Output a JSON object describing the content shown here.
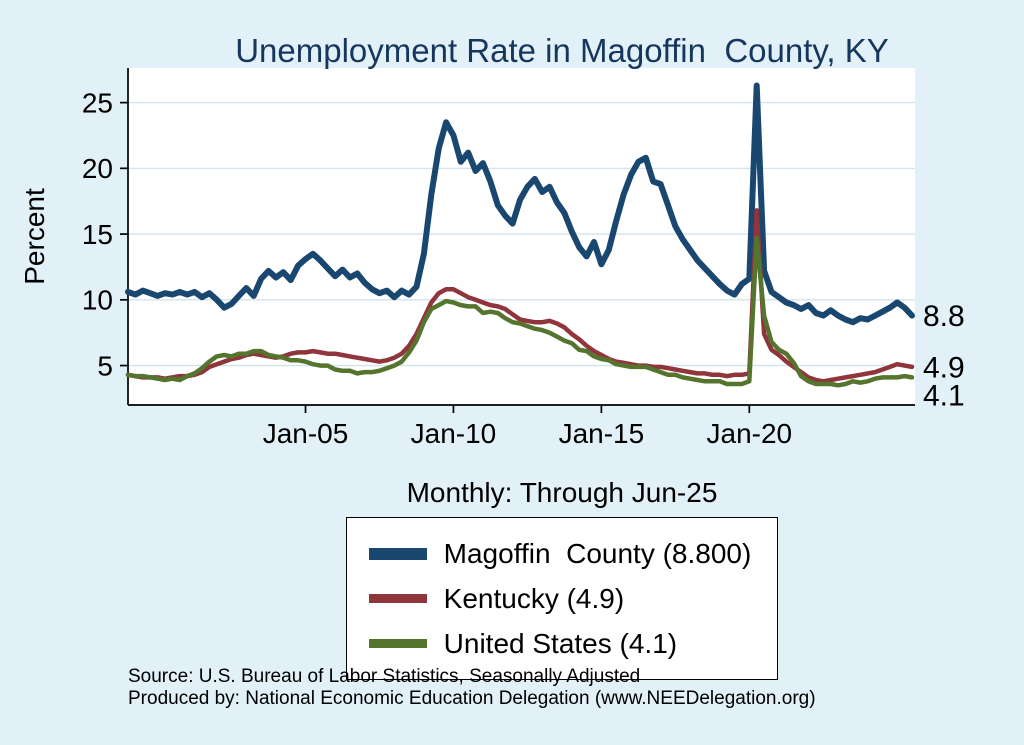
{
  "colors": {
    "background": "#e1f1f7",
    "plot_bg": "#ffffff",
    "gridline": "#cfe4ee",
    "axis": "#000000",
    "title_navy": "#17365d"
  },
  "chart_data": {
    "type": "line",
    "title": "Unemployment Rate in Magoffin  County, KY",
    "subtitle": "Monthly: Through Jun-25",
    "ylabel": "Percent",
    "yticks": [
      5,
      10,
      15,
      20,
      25
    ],
    "xticks": [
      {
        "x": 2005,
        "label": "Jan-05"
      },
      {
        "x": 2010,
        "label": "Jan-10"
      },
      {
        "x": 2015,
        "label": "Jan-15"
      },
      {
        "x": 2020,
        "label": "Jan-20"
      }
    ],
    "ylim": [
      2,
      27.1
    ],
    "xlim": [
      1999,
      2025.6
    ],
    "x_start": 1999,
    "x_step": 0.25,
    "grid": true,
    "legend_position": "bottom",
    "series": [
      {
        "name": "Magoffin County",
        "legend_label": "Magoffin  County (8.800)",
        "end_label": "8.8",
        "color": "#1a476f",
        "line_width": 6,
        "values": [
          10.6,
          10.4,
          10.7,
          10.5,
          10.3,
          10.5,
          10.4,
          10.6,
          10.4,
          10.6,
          10.2,
          10.5,
          10.0,
          9.4,
          9.7,
          10.3,
          10.9,
          10.3,
          11.6,
          12.2,
          11.7,
          12.1,
          11.5,
          12.6,
          13.1,
          13.5,
          13.0,
          12.4,
          11.8,
          12.3,
          11.7,
          12.0,
          11.3,
          10.8,
          10.5,
          10.7,
          10.2,
          10.7,
          10.4,
          11.0,
          13.5,
          18.0,
          21.5,
          23.5,
          22.5,
          20.5,
          21.2,
          19.8,
          20.4,
          19.0,
          17.2,
          16.4,
          15.8,
          17.6,
          18.6,
          19.2,
          18.2,
          18.6,
          17.4,
          16.6,
          15.2,
          14.0,
          13.3,
          14.4,
          12.7,
          13.8,
          16.0,
          18.0,
          19.5,
          20.5,
          20.8,
          19.0,
          18.8,
          17.2,
          15.6,
          14.6,
          13.8,
          13.0,
          12.4,
          11.8,
          11.2,
          10.7,
          10.4,
          11.2,
          11.6,
          26.3,
          12.2,
          10.6,
          10.2,
          9.8,
          9.6,
          9.3,
          9.6,
          9.0,
          8.8,
          9.2,
          8.8,
          8.5,
          8.3,
          8.6,
          8.5,
          8.8,
          9.1,
          9.4,
          9.8,
          9.4,
          8.8
        ]
      },
      {
        "name": "Kentucky",
        "legend_label": "Kentucky (4.9)",
        "end_label": "4.9",
        "color": "#90353b",
        "line_width": 4.5,
        "values": [
          4.3,
          4.2,
          4.1,
          4.1,
          4.1,
          4.0,
          4.1,
          4.2,
          4.2,
          4.3,
          4.5,
          4.9,
          5.1,
          5.3,
          5.5,
          5.6,
          5.8,
          5.9,
          5.8,
          5.7,
          5.6,
          5.7,
          5.9,
          6.0,
          6.0,
          6.1,
          6.0,
          5.9,
          5.9,
          5.8,
          5.7,
          5.6,
          5.5,
          5.4,
          5.3,
          5.4,
          5.6,
          5.9,
          6.5,
          7.4,
          8.6,
          9.8,
          10.5,
          10.8,
          10.8,
          10.5,
          10.2,
          10.0,
          9.8,
          9.6,
          9.5,
          9.3,
          8.9,
          8.5,
          8.4,
          8.3,
          8.3,
          8.4,
          8.2,
          7.9,
          7.4,
          7.0,
          6.5,
          6.1,
          5.8,
          5.5,
          5.3,
          5.2,
          5.1,
          5.0,
          5.0,
          4.9,
          4.9,
          4.8,
          4.7,
          4.6,
          4.5,
          4.4,
          4.4,
          4.3,
          4.3,
          4.2,
          4.3,
          4.3,
          4.4,
          16.8,
          7.4,
          6.2,
          5.8,
          5.3,
          4.9,
          4.5,
          4.1,
          3.9,
          3.8,
          3.9,
          4.0,
          4.1,
          4.2,
          4.3,
          4.4,
          4.5,
          4.7,
          4.9,
          5.1,
          5.0,
          4.9
        ]
      },
      {
        "name": "United States",
        "legend_label": "United States (4.1)",
        "end_label": "4.1",
        "color": "#55752f",
        "line_width": 4.5,
        "values": [
          4.3,
          4.2,
          4.2,
          4.1,
          4.0,
          3.9,
          4.0,
          3.9,
          4.2,
          4.4,
          4.8,
          5.3,
          5.7,
          5.8,
          5.7,
          5.9,
          5.9,
          6.1,
          6.1,
          5.8,
          5.7,
          5.6,
          5.4,
          5.4,
          5.3,
          5.1,
          5.0,
          5.0,
          4.7,
          4.6,
          4.6,
          4.4,
          4.5,
          4.5,
          4.6,
          4.8,
          5.0,
          5.3,
          6.0,
          6.9,
          8.3,
          9.3,
          9.6,
          9.9,
          9.8,
          9.6,
          9.5,
          9.5,
          9.0,
          9.1,
          9.0,
          8.6,
          8.3,
          8.2,
          8.0,
          7.8,
          7.7,
          7.5,
          7.2,
          6.9,
          6.7,
          6.2,
          6.1,
          5.7,
          5.5,
          5.4,
          5.1,
          5.0,
          4.9,
          4.9,
          4.9,
          4.7,
          4.5,
          4.3,
          4.3,
          4.1,
          4.0,
          3.9,
          3.8,
          3.8,
          3.8,
          3.6,
          3.6,
          3.6,
          3.8,
          14.7,
          8.8,
          6.8,
          6.2,
          5.9,
          5.2,
          4.2,
          3.8,
          3.6,
          3.6,
          3.6,
          3.5,
          3.6,
          3.8,
          3.7,
          3.8,
          4.0,
          4.1,
          4.1,
          4.1,
          4.2,
          4.1
        ]
      }
    ]
  },
  "notes": {
    "source": "Source: U.S. Bureau of Labor Statistics, Seasonally Adjusted",
    "produced_by": "Produced by: National Economic Education Delegation (www.NEEDelegation.org)"
  }
}
